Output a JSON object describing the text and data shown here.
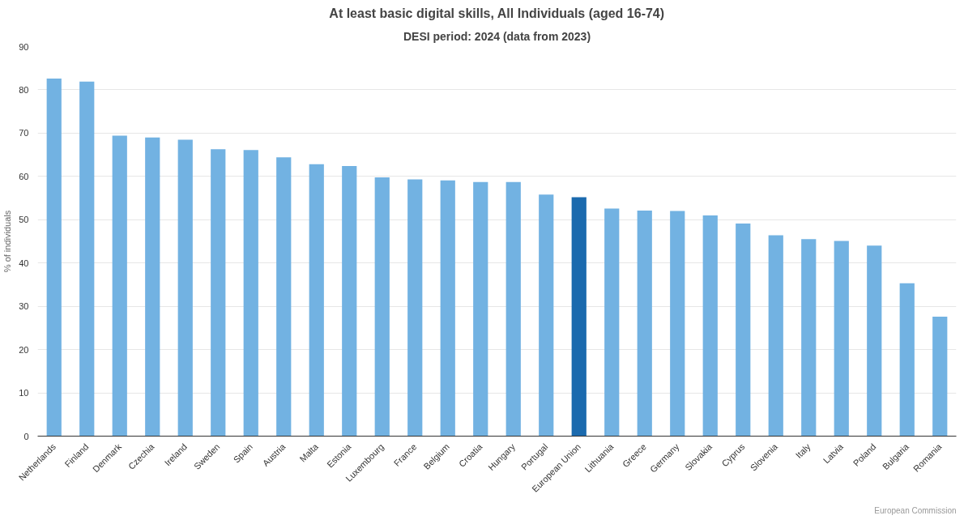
{
  "chart_data": {
    "type": "bar",
    "title": "At least basic digital skills, All Individuals (aged 16-74)",
    "subtitle": "DESI period: 2024 (data from 2023)",
    "ylabel": "% of individuals",
    "categories": [
      "Netherlands",
      "Finland",
      "Denmark",
      "Czechia",
      "Ireland",
      "Sweden",
      "Spain",
      "Austria",
      "Malta",
      "Estonia",
      "Luxembourg",
      "France",
      "Belgium",
      "Croatia",
      "Hungary",
      "Portugal",
      "European Union",
      "Lithuania",
      "Greece",
      "Germany",
      "Slovakia",
      "Cyprus",
      "Slovenia",
      "Italy",
      "Latvia",
      "Poland",
      "Bulgaria",
      "Romania"
    ],
    "values": [
      82.6,
      81.9,
      69.4,
      69.0,
      68.5,
      66.3,
      66.1,
      64.4,
      62.8,
      62.4,
      59.8,
      59.3,
      59.1,
      58.7,
      58.7,
      55.8,
      55.2,
      52.6,
      52.1,
      52.0,
      51.0,
      49.1,
      46.4,
      45.5,
      45.1,
      44.0,
      35.3,
      27.6
    ],
    "colors": [
      "#72b2e2",
      "#72b2e2",
      "#72b2e2",
      "#72b2e2",
      "#72b2e2",
      "#72b2e2",
      "#72b2e2",
      "#72b2e2",
      "#72b2e2",
      "#72b2e2",
      "#72b2e2",
      "#72b2e2",
      "#72b2e2",
      "#72b2e2",
      "#72b2e2",
      "#72b2e2",
      "#1b6aae",
      "#72b2e2",
      "#72b2e2",
      "#72b2e2",
      "#72b2e2",
      "#72b2e2",
      "#72b2e2",
      "#72b2e2",
      "#72b2e2",
      "#72b2e2",
      "#72b2e2",
      "#72b2e2"
    ],
    "ylim": [
      0,
      90
    ],
    "yticks": [
      0,
      10,
      20,
      30,
      40,
      50,
      60,
      70,
      80,
      90
    ],
    "grid": "y",
    "annotations": [
      "European Commission"
    ]
  }
}
